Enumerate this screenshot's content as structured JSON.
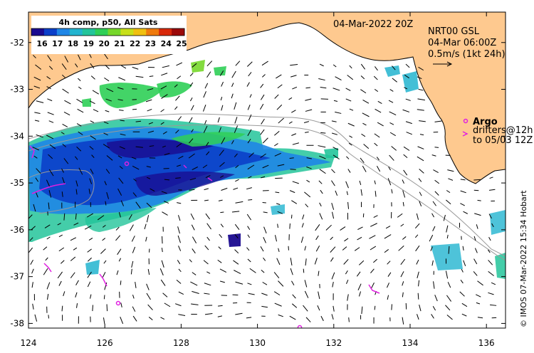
{
  "map": {
    "title_date": "04-Mar-2022 20Z",
    "product": {
      "name": "NRT00 GSL",
      "time": "04-Mar 06:00Z",
      "current_scale": "0.5m/s (1kt 24h)"
    },
    "colorbar": {
      "title": "4h comp, p50, All Sats",
      "labels": [
        "16",
        "17",
        "18",
        "19",
        "20",
        "21",
        "22",
        "23",
        "24",
        "25"
      ],
      "colors": [
        "#1a0a8f",
        "#0b3fc9",
        "#1f86e6",
        "#22b4cf",
        "#23c49a",
        "#2fcf57",
        "#76d72a",
        "#c7df19",
        "#f0c010",
        "#ef7a0c",
        "#d8280a",
        "#9b0a0a"
      ]
    },
    "legend": {
      "argo_label": "Argo",
      "drifters_line1": "drifters@12h",
      "drifters_line2": "to 05/03 12Z"
    },
    "credit": "© IMOS 07-Mar-2022 15:34 Hobart",
    "axes": {
      "lon_ticks": [
        "124",
        "126",
        "128",
        "130",
        "132",
        "134",
        "136"
      ],
      "lat_ticks": [
        "-32",
        "-33",
        "-34",
        "-35",
        "-36",
        "-37",
        "-38"
      ],
      "lon_range": [
        124,
        136.5
      ],
      "lat_range": [
        -38.1,
        -31.35
      ]
    },
    "colors": {
      "land": "#fec98f",
      "argo": "#e020e0",
      "isobath": "#9a9a9a"
    }
  }
}
